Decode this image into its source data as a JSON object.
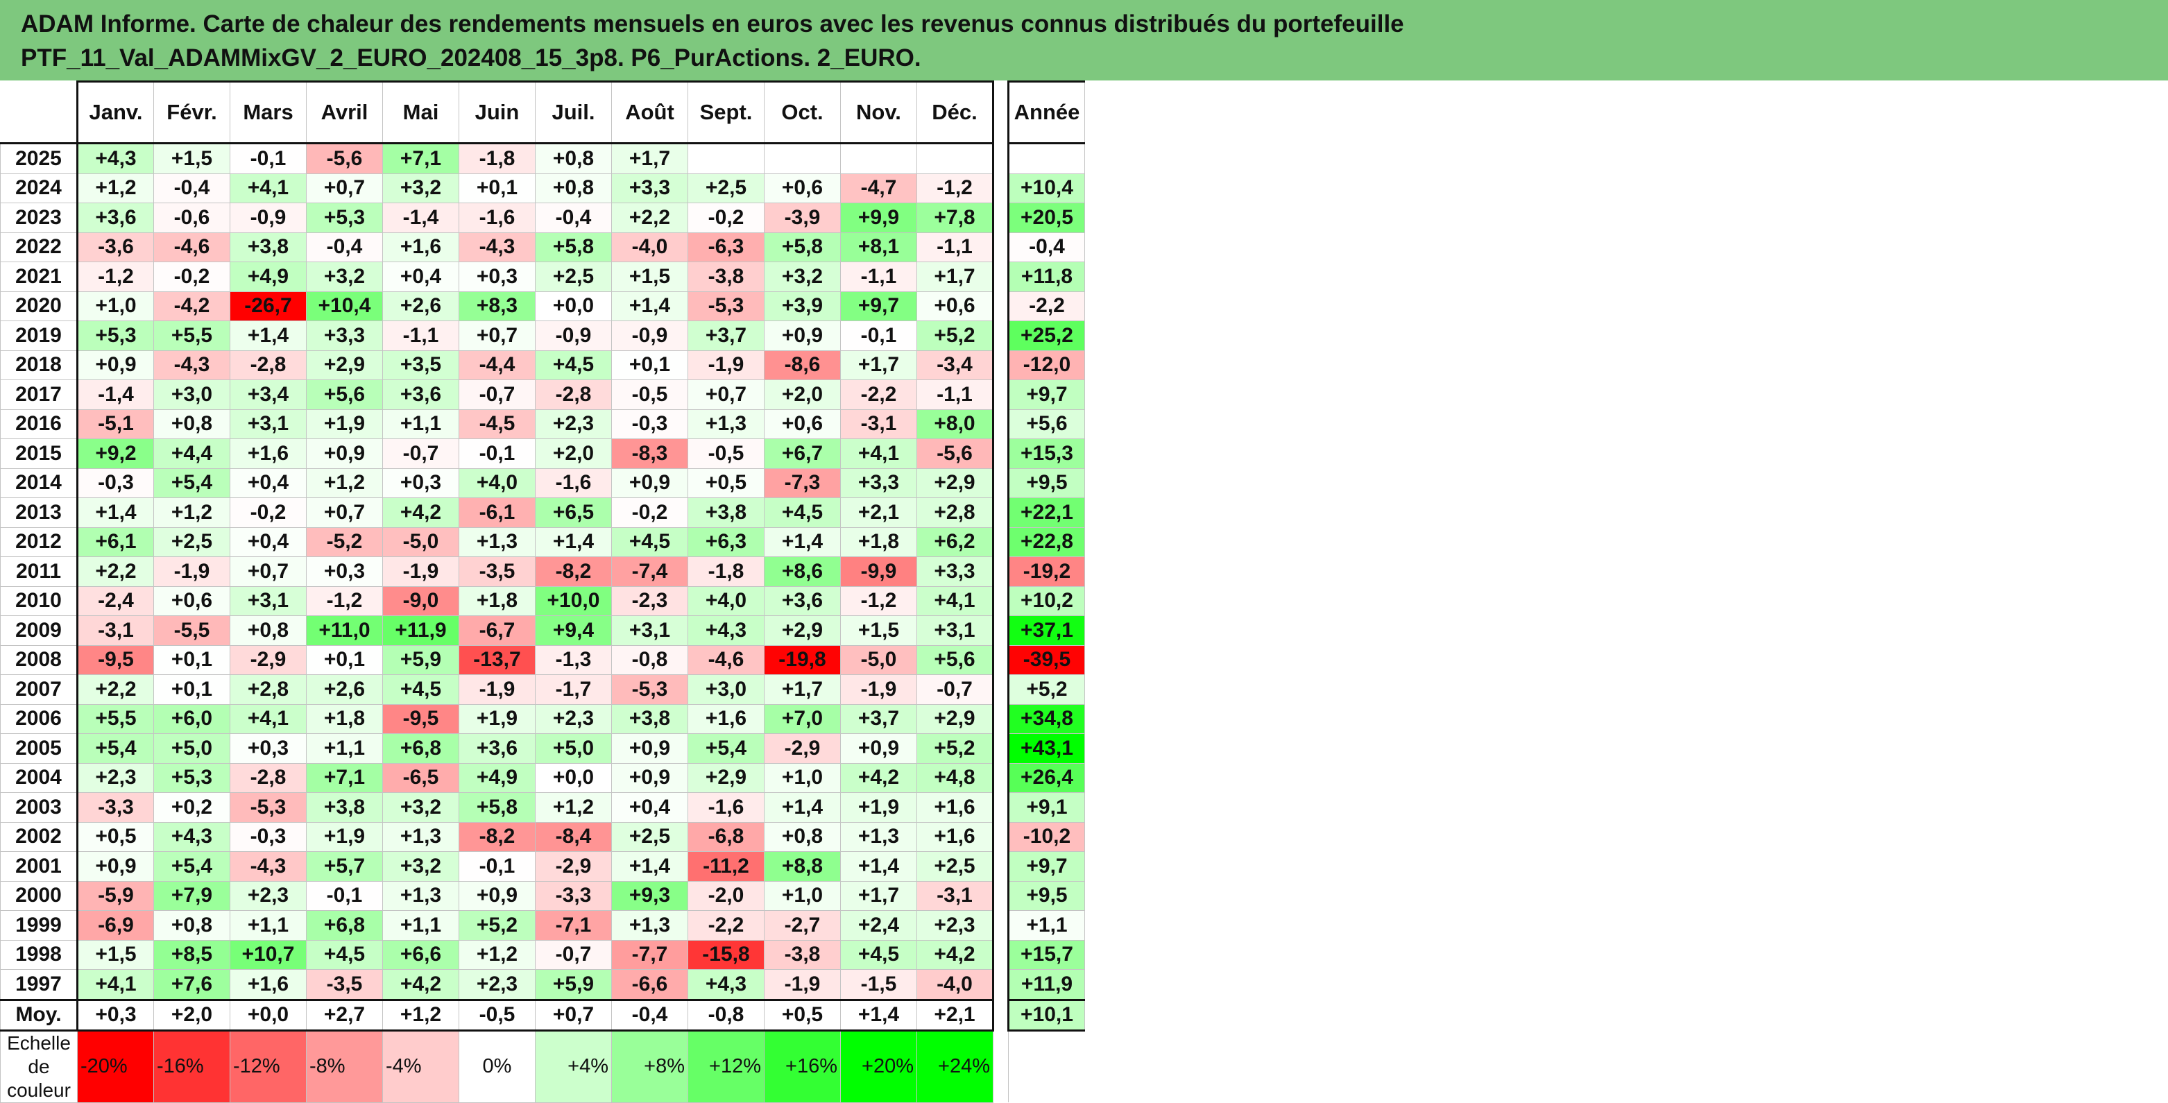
{
  "title": {
    "line1": "ADAM Informe. Carte de chaleur des rendements mensuels en euros avec les revenus connus distribués du portefeuille",
    "line2": "PTF_11_Val_ADAMMixGV_2_EURO_202408_15_3p8. P6_PurActions. 2_EURO."
  },
  "chart_data": {
    "type": "heatmap",
    "title": "ADAM Informe. Carte de chaleur des rendements mensuels en euros avec les revenus connus distribués du portefeuille PTF_11_Val_ADAMMixGV_2_EURO_202408_15_3p8. P6_PurActions. 2_EURO.",
    "columns": [
      "Janv.",
      "Févr.",
      "Mars",
      "Avril",
      "Mai",
      "Juin",
      "Juil.",
      "Août",
      "Sept.",
      "Oct.",
      "Nov.",
      "Déc."
    ],
    "annual_column": "Année",
    "rows": [
      {
        "year": "2025",
        "values": [
          "+4,3",
          "+1,5",
          "-0,1",
          "-5,6",
          "+7,1",
          "-1,8",
          "+0,8",
          "+1,7",
          "",
          "",
          "",
          ""
        ],
        "annual": ""
      },
      {
        "year": "2024",
        "values": [
          "+1,2",
          "-0,4",
          "+4,1",
          "+0,7",
          "+3,2",
          "+0,1",
          "+0,8",
          "+3,3",
          "+2,5",
          "+0,6",
          "-4,7",
          "-1,2"
        ],
        "annual": "+10,4"
      },
      {
        "year": "2023",
        "values": [
          "+3,6",
          "-0,6",
          "-0,9",
          "+5,3",
          "-1,4",
          "-1,6",
          "-0,4",
          "+2,2",
          "-0,2",
          "-3,9",
          "+9,9",
          "+7,8"
        ],
        "annual": "+20,5"
      },
      {
        "year": "2022",
        "values": [
          "-3,6",
          "-4,6",
          "+3,8",
          "-0,4",
          "+1,6",
          "-4,3",
          "+5,8",
          "-4,0",
          "-6,3",
          "+5,8",
          "+8,1",
          "-1,1"
        ],
        "annual": "-0,4"
      },
      {
        "year": "2021",
        "values": [
          "-1,2",
          "-0,2",
          "+4,9",
          "+3,2",
          "+0,4",
          "+0,3",
          "+2,5",
          "+1,5",
          "-3,8",
          "+3,2",
          "-1,1",
          "+1,7"
        ],
        "annual": "+11,8"
      },
      {
        "year": "2020",
        "values": [
          "+1,0",
          "-4,2",
          "-26,7",
          "+10,4",
          "+2,6",
          "+8,3",
          "+0,0",
          "+1,4",
          "-5,3",
          "+3,9",
          "+9,7",
          "+0,6"
        ],
        "annual": "-2,2"
      },
      {
        "year": "2019",
        "values": [
          "+5,3",
          "+5,5",
          "+1,4",
          "+3,3",
          "-1,1",
          "+0,7",
          "-0,9",
          "-0,9",
          "+3,7",
          "+0,9",
          "-0,1",
          "+5,2"
        ],
        "annual": "+25,2"
      },
      {
        "year": "2018",
        "values": [
          "+0,9",
          "-4,3",
          "-2,8",
          "+2,9",
          "+3,5",
          "-4,4",
          "+4,5",
          "+0,1",
          "-1,9",
          "-8,6",
          "+1,7",
          "-3,4"
        ],
        "annual": "-12,0"
      },
      {
        "year": "2017",
        "values": [
          "-1,4",
          "+3,0",
          "+3,4",
          "+5,6",
          "+3,6",
          "-0,7",
          "-2,8",
          "-0,5",
          "+0,7",
          "+2,0",
          "-2,2",
          "-1,1"
        ],
        "annual": "+9,7"
      },
      {
        "year": "2016",
        "values": [
          "-5,1",
          "+0,8",
          "+3,1",
          "+1,9",
          "+1,1",
          "-4,5",
          "+2,3",
          "-0,3",
          "+1,3",
          "+0,6",
          "-3,1",
          "+8,0"
        ],
        "annual": "+5,6"
      },
      {
        "year": "2015",
        "values": [
          "+9,2",
          "+4,4",
          "+1,6",
          "+0,9",
          "-0,7",
          "-0,1",
          "+2,0",
          "-8,3",
          "-0,5",
          "+6,7",
          "+4,1",
          "-5,6"
        ],
        "annual": "+15,3"
      },
      {
        "year": "2014",
        "values": [
          "-0,3",
          "+5,4",
          "+0,4",
          "+1,2",
          "+0,3",
          "+4,0",
          "-1,6",
          "+0,9",
          "+0,5",
          "-7,3",
          "+3,3",
          "+2,9"
        ],
        "annual": "+9,5"
      },
      {
        "year": "2013",
        "values": [
          "+1,4",
          "+1,2",
          "-0,2",
          "+0,7",
          "+4,2",
          "-6,1",
          "+6,5",
          "-0,2",
          "+3,8",
          "+4,5",
          "+2,1",
          "+2,8"
        ],
        "annual": "+22,1"
      },
      {
        "year": "2012",
        "values": [
          "+6,1",
          "+2,5",
          "+0,4",
          "-5,2",
          "-5,0",
          "+1,3",
          "+1,4",
          "+4,5",
          "+6,3",
          "+1,4",
          "+1,8",
          "+6,2"
        ],
        "annual": "+22,8"
      },
      {
        "year": "2011",
        "values": [
          "+2,2",
          "-1,9",
          "+0,7",
          "+0,3",
          "-1,9",
          "-3,5",
          "-8,2",
          "-7,4",
          "-1,8",
          "+8,6",
          "-9,9",
          "+3,3"
        ],
        "annual": "-19,2"
      },
      {
        "year": "2010",
        "values": [
          "-2,4",
          "+0,6",
          "+3,1",
          "-1,2",
          "-9,0",
          "+1,8",
          "+10,0",
          "-2,3",
          "+4,0",
          "+3,6",
          "-1,2",
          "+4,1"
        ],
        "annual": "+10,2"
      },
      {
        "year": "2009",
        "values": [
          "-3,1",
          "-5,5",
          "+0,8",
          "+11,0",
          "+11,9",
          "-6,7",
          "+9,4",
          "+3,1",
          "+4,3",
          "+2,9",
          "+1,5",
          "+3,1"
        ],
        "annual": "+37,1"
      },
      {
        "year": "2008",
        "values": [
          "-9,5",
          "+0,1",
          "-2,9",
          "+0,1",
          "+5,9",
          "-13,7",
          "-1,3",
          "-0,8",
          "-4,6",
          "-19,8",
          "-5,0",
          "+5,6"
        ],
        "annual": "-39,5"
      },
      {
        "year": "2007",
        "values": [
          "+2,2",
          "+0,1",
          "+2,8",
          "+2,6",
          "+4,5",
          "-1,9",
          "-1,7",
          "-5,3",
          "+3,0",
          "+1,7",
          "-1,9",
          "-0,7"
        ],
        "annual": "+5,2"
      },
      {
        "year": "2006",
        "values": [
          "+5,5",
          "+6,0",
          "+4,1",
          "+1,8",
          "-9,5",
          "+1,9",
          "+2,3",
          "+3,8",
          "+1,6",
          "+7,0",
          "+3,7",
          "+2,9"
        ],
        "annual": "+34,8"
      },
      {
        "year": "2005",
        "values": [
          "+5,4",
          "+5,0",
          "+0,3",
          "+1,1",
          "+6,8",
          "+3,6",
          "+5,0",
          "+0,9",
          "+5,4",
          "-2,9",
          "+0,9",
          "+5,2"
        ],
        "annual": "+43,1"
      },
      {
        "year": "2004",
        "values": [
          "+2,3",
          "+5,3",
          "-2,8",
          "+7,1",
          "-6,5",
          "+4,9",
          "+0,0",
          "+0,9",
          "+2,9",
          "+1,0",
          "+4,2",
          "+4,8"
        ],
        "annual": "+26,4"
      },
      {
        "year": "2003",
        "values": [
          "-3,3",
          "+0,2",
          "-5,3",
          "+3,8",
          "+3,2",
          "+5,8",
          "+1,2",
          "+0,4",
          "-1,6",
          "+1,4",
          "+1,9",
          "+1,6"
        ],
        "annual": "+9,1"
      },
      {
        "year": "2002",
        "values": [
          "+0,5",
          "+4,3",
          "-0,3",
          "+1,9",
          "+1,3",
          "-8,2",
          "-8,4",
          "+2,5",
          "-6,8",
          "+0,8",
          "+1,3",
          "+1,6"
        ],
        "annual": "-10,2"
      },
      {
        "year": "2001",
        "values": [
          "+0,9",
          "+5,4",
          "-4,3",
          "+5,7",
          "+3,2",
          "-0,1",
          "-2,9",
          "+1,4",
          "-11,2",
          "+8,8",
          "+1,4",
          "+2,5"
        ],
        "annual": "+9,7"
      },
      {
        "year": "2000",
        "values": [
          "-5,9",
          "+7,9",
          "+2,3",
          "-0,1",
          "+1,3",
          "+0,9",
          "-3,3",
          "+9,3",
          "-2,0",
          "+1,0",
          "+1,7",
          "-3,1"
        ],
        "annual": "+9,5"
      },
      {
        "year": "1999",
        "values": [
          "-6,9",
          "+0,8",
          "+1,1",
          "+6,8",
          "+1,1",
          "+5,2",
          "-7,1",
          "+1,3",
          "-2,2",
          "-2,7",
          "+2,4",
          "+2,3"
        ],
        "annual": "+1,1"
      },
      {
        "year": "1998",
        "values": [
          "+1,5",
          "+8,5",
          "+10,7",
          "+4,5",
          "+6,6",
          "+1,2",
          "-0,7",
          "-7,7",
          "-15,8",
          "-3,8",
          "+4,5",
          "+4,2"
        ],
        "annual": "+15,7"
      },
      {
        "year": "1997",
        "values": [
          "+4,1",
          "+7,6",
          "+1,6",
          "-3,5",
          "+4,2",
          "+2,3",
          "+5,9",
          "-6,6",
          "+4,3",
          "-1,9",
          "-1,5",
          "-4,0"
        ],
        "annual": "+11,9"
      }
    ],
    "average": {
      "label": "Moy.",
      "values": [
        "+0,3",
        "+2,0",
        "+0,0",
        "+2,7",
        "+1,2",
        "-0,5",
        "+0,7",
        "-0,4",
        "-0,8",
        "+0,5",
        "+1,4",
        "+2,1"
      ],
      "annual": "+10,1"
    },
    "color_scale": {
      "label": "Echelle de couleur",
      "stops": [
        "-20%",
        "-16%",
        "-12%",
        "-8%",
        "-4%",
        "0%",
        "+4%",
        "+8%",
        "+12%",
        "+16%",
        "+20%",
        "+24%"
      ]
    },
    "colors": {
      "negative_max": "#ff0000",
      "neutral": "#ffffff",
      "positive_max": "#00ff00",
      "title_bg": "#7ec87e"
    }
  }
}
